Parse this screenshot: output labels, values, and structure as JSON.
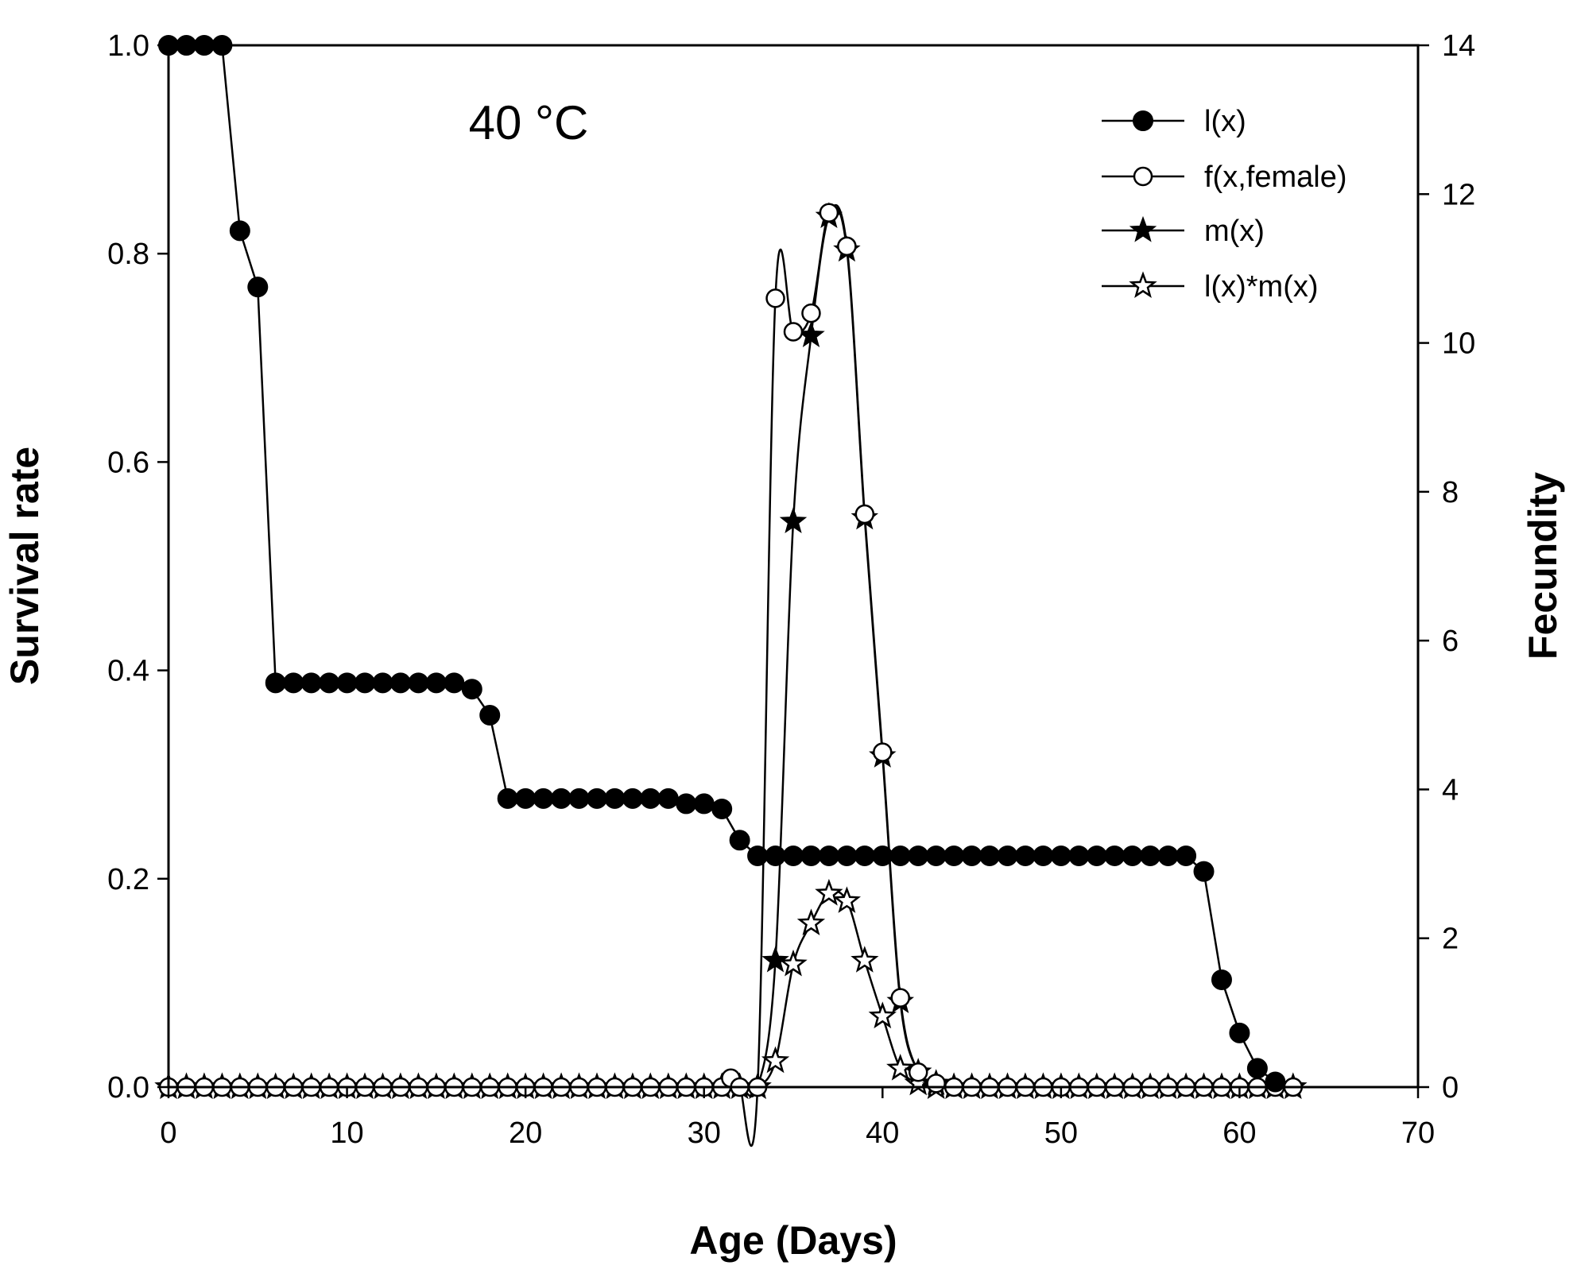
{
  "chart_data": {
    "type": "line",
    "annotation": "40 °C",
    "xlabel": "Age (Days)",
    "ylabel_left": "Survival rate",
    "ylabel_right": "Fecundity",
    "xlim": [
      0,
      70
    ],
    "ylim_left": [
      0,
      1.0
    ],
    "ylim_right": [
      0,
      14
    ],
    "x_ticks": [
      "0",
      "10",
      "20",
      "30",
      "40",
      "50",
      "60",
      "70"
    ],
    "y_left_ticks": [
      "0.0",
      "0.2",
      "0.4",
      "0.6",
      "0.8",
      "1.0"
    ],
    "y_right_ticks": [
      "0",
      "2",
      "4",
      "6",
      "8",
      "10",
      "12",
      "14"
    ],
    "legend": [
      "l(x)",
      "f(x,female)",
      "m(x)",
      "l(x)*m(x)"
    ],
    "series": [
      {
        "name": "l(x)",
        "axis": "left",
        "marker": "filled-circle",
        "x": [
          0,
          1,
          2,
          3,
          4,
          5,
          6,
          7,
          8,
          9,
          10,
          11,
          12,
          13,
          14,
          15,
          16,
          17,
          18,
          19,
          20,
          21,
          22,
          23,
          24,
          25,
          26,
          27,
          28,
          29,
          30,
          31,
          32,
          33,
          34,
          35,
          36,
          37,
          38,
          39,
          40,
          41,
          42,
          43,
          44,
          45,
          46,
          47,
          48,
          49,
          50,
          51,
          52,
          53,
          54,
          55,
          56,
          57,
          58,
          59,
          60,
          61,
          62
        ],
        "values": [
          1.0,
          1.0,
          1.0,
          1.0,
          0.822,
          0.768,
          0.388,
          0.388,
          0.388,
          0.388,
          0.388,
          0.388,
          0.388,
          0.388,
          0.388,
          0.388,
          0.388,
          0.382,
          0.357,
          0.277,
          0.277,
          0.277,
          0.277,
          0.277,
          0.277,
          0.277,
          0.277,
          0.277,
          0.277,
          0.272,
          0.272,
          0.267,
          0.237,
          0.222,
          0.222,
          0.222,
          0.222,
          0.222,
          0.222,
          0.222,
          0.222,
          0.222,
          0.222,
          0.222,
          0.222,
          0.222,
          0.222,
          0.222,
          0.222,
          0.222,
          0.222,
          0.222,
          0.222,
          0.222,
          0.222,
          0.222,
          0.222,
          0.222,
          0.207,
          0.103,
          0.052,
          0.018,
          0.005
        ]
      },
      {
        "name": "f(x,female)",
        "axis": "right",
        "marker": "open-circle",
        "x": [
          0,
          1,
          2,
          3,
          4,
          5,
          6,
          7,
          8,
          9,
          10,
          11,
          12,
          13,
          14,
          15,
          16,
          17,
          18,
          19,
          20,
          21,
          22,
          23,
          24,
          25,
          26,
          27,
          28,
          29,
          30,
          31,
          31.5,
          32,
          33,
          34,
          35,
          36,
          37,
          38,
          39,
          40,
          41,
          42,
          43,
          44,
          45,
          46,
          47,
          48,
          49,
          50,
          51,
          52,
          53,
          54,
          55,
          56,
          57,
          58,
          59,
          60,
          61,
          62,
          63
        ],
        "values": [
          0,
          0,
          0,
          0,
          0,
          0,
          0,
          0,
          0,
          0,
          0,
          0,
          0,
          0,
          0,
          0,
          0,
          0,
          0,
          0,
          0,
          0,
          0,
          0,
          0,
          0,
          0,
          0,
          0,
          0,
          0,
          0,
          0.12,
          0,
          0,
          10.6,
          10.15,
          10.4,
          11.75,
          11.3,
          7.7,
          4.5,
          1.2,
          0.2,
          0.05,
          0,
          0,
          0,
          0,
          0,
          0,
          0,
          0,
          0,
          0,
          0,
          0,
          0,
          0,
          0,
          0,
          0,
          0,
          0,
          0
        ]
      },
      {
        "name": "m(x)",
        "axis": "right",
        "marker": "filled-star",
        "x": [
          0,
          1,
          2,
          3,
          4,
          5,
          6,
          7,
          8,
          9,
          10,
          11,
          12,
          13,
          14,
          15,
          16,
          17,
          18,
          19,
          20,
          21,
          22,
          23,
          24,
          25,
          26,
          27,
          28,
          29,
          30,
          31,
          32,
          33,
          34,
          35,
          36,
          37,
          38,
          39,
          40,
          41,
          42,
          43,
          44,
          45,
          46,
          47,
          48,
          49,
          50,
          51,
          52,
          53,
          54,
          55,
          56,
          57,
          58,
          59,
          60,
          61,
          62,
          63
        ],
        "values": [
          0,
          0,
          0,
          0,
          0,
          0,
          0,
          0,
          0,
          0,
          0,
          0,
          0,
          0,
          0,
          0,
          0,
          0,
          0,
          0,
          0,
          0,
          0,
          0,
          0,
          0,
          0,
          0,
          0,
          0,
          0,
          0,
          0,
          0,
          1.7,
          7.6,
          10.1,
          11.7,
          11.25,
          7.65,
          4.45,
          1.15,
          0.2,
          0.05,
          0,
          0,
          0,
          0,
          0,
          0,
          0,
          0,
          0,
          0,
          0,
          0,
          0,
          0,
          0,
          0,
          0,
          0,
          0,
          0
        ]
      },
      {
        "name": "l(x)*m(x)",
        "axis": "right",
        "marker": "open-star",
        "x": [
          0,
          1,
          2,
          3,
          4,
          5,
          6,
          7,
          8,
          9,
          10,
          11,
          12,
          13,
          14,
          15,
          16,
          17,
          18,
          19,
          20,
          21,
          22,
          23,
          24,
          25,
          26,
          27,
          28,
          29,
          30,
          31,
          32,
          33,
          34,
          35,
          36,
          37,
          38,
          39,
          40,
          41,
          42,
          43,
          44,
          45,
          46,
          47,
          48,
          49,
          50,
          51,
          52,
          53,
          54,
          55,
          56,
          57,
          58,
          59,
          60,
          61,
          62,
          63
        ],
        "values": [
          0,
          0,
          0,
          0,
          0,
          0,
          0,
          0,
          0,
          0,
          0,
          0,
          0,
          0,
          0,
          0,
          0,
          0,
          0,
          0,
          0,
          0,
          0,
          0,
          0,
          0,
          0,
          0,
          0,
          0,
          0,
          0,
          0,
          0,
          0.35,
          1.65,
          2.2,
          2.6,
          2.5,
          1.7,
          0.95,
          0.25,
          0.05,
          0,
          0,
          0,
          0,
          0,
          0,
          0,
          0,
          0,
          0,
          0,
          0,
          0,
          0,
          0,
          0,
          0,
          0,
          0,
          0,
          0
        ]
      }
    ]
  }
}
